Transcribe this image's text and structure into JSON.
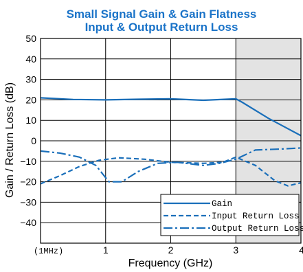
{
  "chart_data": {
    "type": "line",
    "title": "Small Signal Gain & Gain Flatness",
    "subtitle": "Input & Output Return Loss",
    "xlabel": "Frequency (GHz)",
    "ylabel": "Gain / Return Loss (dB)",
    "xlim": [
      0,
      4
    ],
    "ylim": [
      -50,
      50
    ],
    "x_ticks": [
      {
        "value": 0,
        "label": "(1MHz)"
      },
      {
        "value": 1,
        "label": "1"
      },
      {
        "value": 2,
        "label": "2"
      },
      {
        "value": 3,
        "label": "3"
      },
      {
        "value": 4,
        "label": "4"
      }
    ],
    "y_ticks": [
      {
        "value": 50,
        "label": "50"
      },
      {
        "value": 40,
        "label": "40"
      },
      {
        "value": 30,
        "label": "30"
      },
      {
        "value": 20,
        "label": "20"
      },
      {
        "value": 10,
        "label": "10"
      },
      {
        "value": 0,
        "label": "0"
      },
      {
        "value": -10,
        "label": "−10"
      },
      {
        "value": -20,
        "label": "−20"
      },
      {
        "value": -30,
        "label": "−30"
      },
      {
        "value": -40,
        "label": "−40"
      }
    ],
    "shaded_region": {
      "x": [
        3,
        4
      ],
      "color": "#e3e3e3"
    },
    "grid": true,
    "legend_position": "bottom-right",
    "line_color": "#1a6fba",
    "title_color": "#1a73c8",
    "series": [
      {
        "name": "Gain",
        "style": "solid",
        "x": [
          0,
          0.5,
          1,
          1.5,
          2,
          2.5,
          2.85,
          3,
          3.1,
          3.5,
          4
        ],
        "y": [
          21,
          20.2,
          20,
          20.3,
          20.5,
          19.8,
          20.3,
          20.5,
          18.8,
          11,
          2.5
        ]
      },
      {
        "name": "Input Return Loss",
        "style": "dash",
        "x": [
          0,
          0.3,
          0.6,
          0.9,
          1.2,
          1.6,
          2.0,
          2.5,
          2.8,
          3.0,
          3.3,
          3.6,
          3.8,
          4
        ],
        "y": [
          -21,
          -17,
          -12.5,
          -9.5,
          -8.3,
          -9,
          -10.5,
          -11,
          -10.5,
          -8,
          -12,
          -19.5,
          -22,
          -20.5
        ]
      },
      {
        "name": "Output Return Loss",
        "style": "dashdot",
        "x": [
          0,
          0.3,
          0.6,
          0.85,
          1.05,
          1.25,
          1.5,
          1.8,
          2.1,
          2.5,
          2.75,
          3.0,
          3.3,
          3.7,
          4
        ],
        "y": [
          -5,
          -6,
          -8,
          -12,
          -20,
          -20,
          -15,
          -11,
          -10.5,
          -12,
          -11,
          -9,
          -4.5,
          -4,
          -3.5
        ]
      }
    ]
  }
}
